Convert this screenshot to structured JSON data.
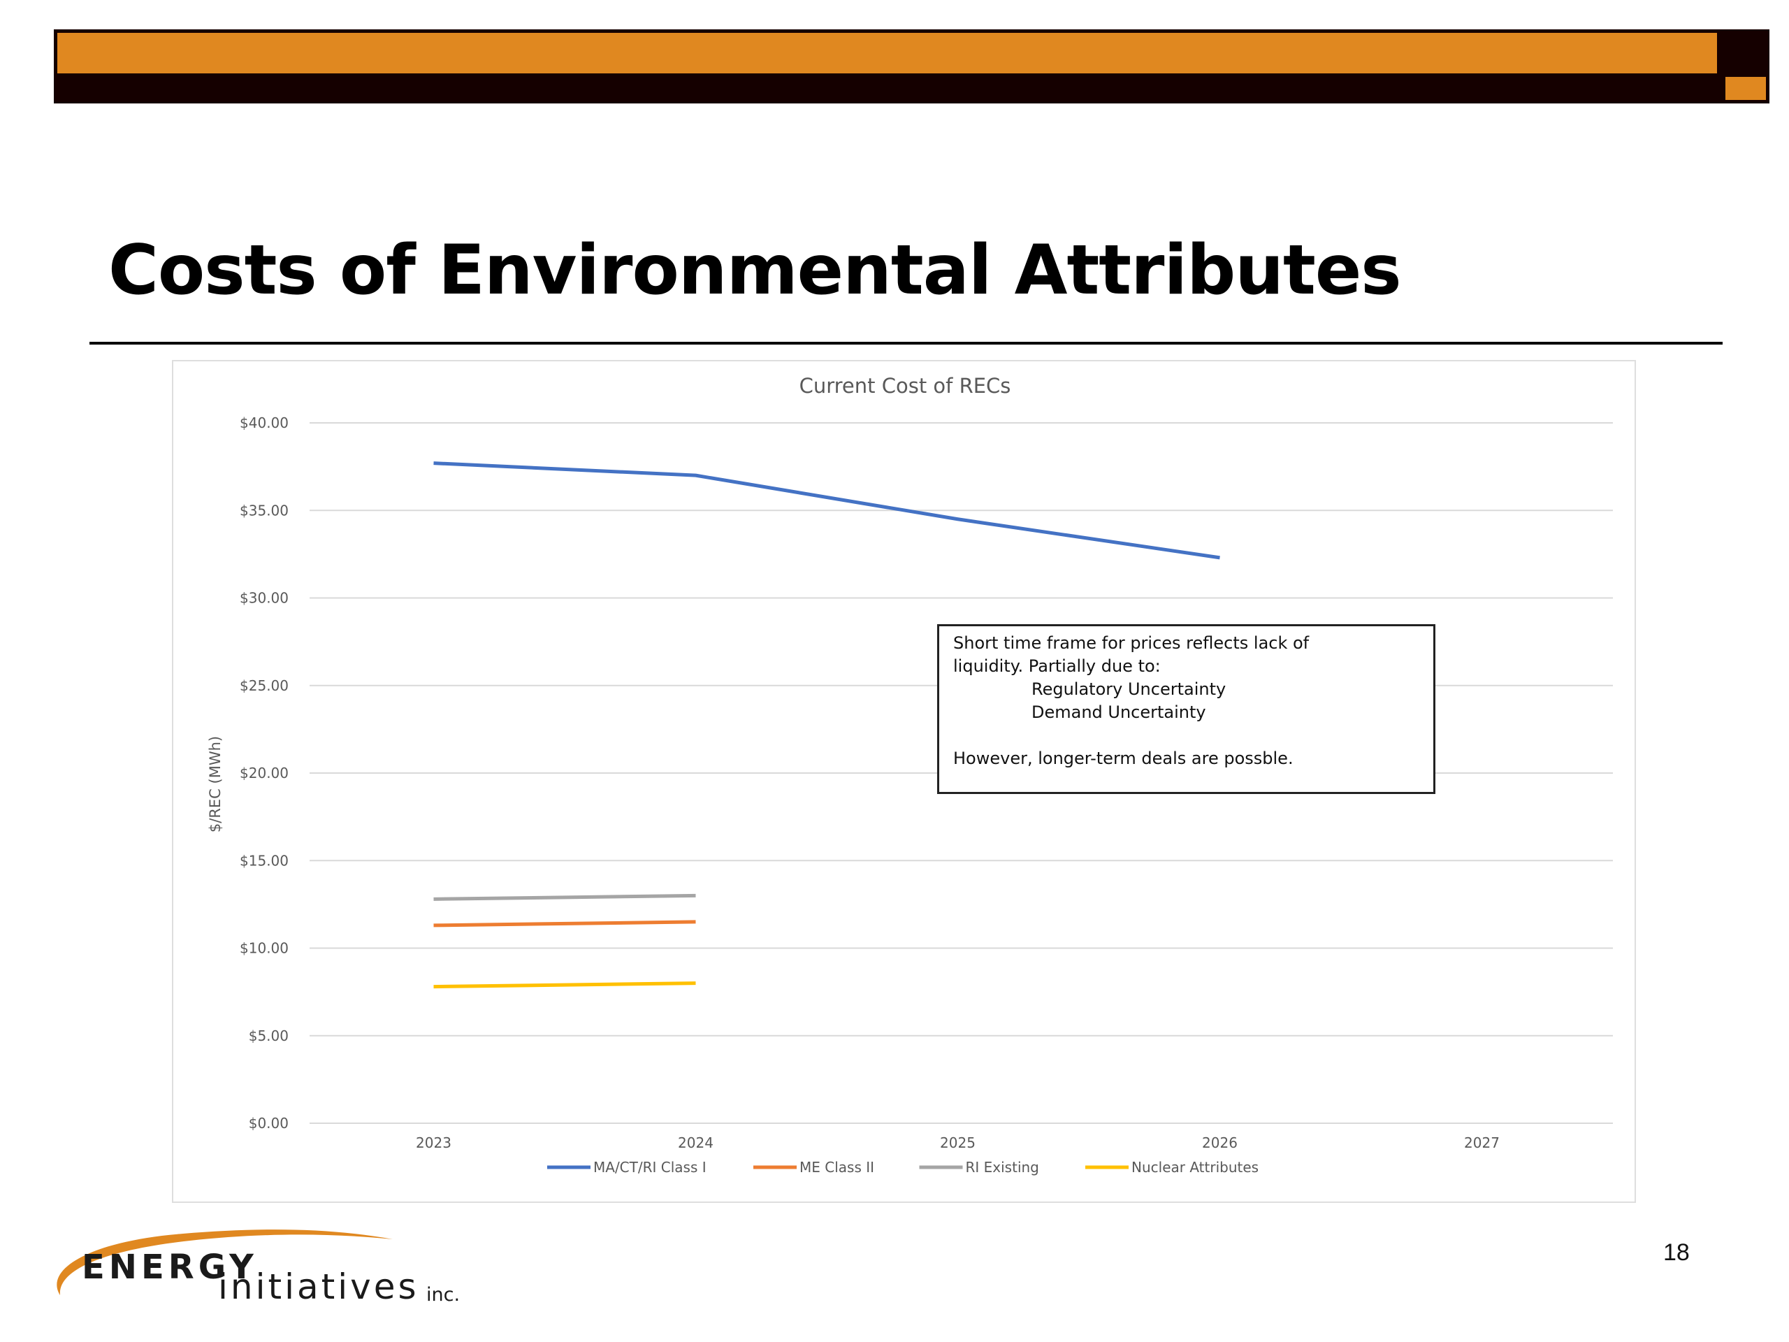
{
  "slide": {
    "title": "Costs of Environmental Attributes",
    "page_number": "18"
  },
  "colors": {
    "accent_orange": "#e08820",
    "bar_dark": "#150000"
  },
  "note": {
    "line1": "Short time frame for prices reflects lack of",
    "line2": "liquidity.  Partially due to:",
    "line3": "Regulatory Uncertainty",
    "line4": "Demand Uncertainty",
    "line5": "However, longer-term deals are possble."
  },
  "logo": {
    "word1": "ENERGY",
    "word2": "initiatives",
    "word3": "inc."
  },
  "chart_data": {
    "type": "line",
    "title": "Current Cost of RECs",
    "ylabel": "$/REC (MWh)",
    "xlabel": "",
    "categories": [
      "2023",
      "2024",
      "2025",
      "2026",
      "2027"
    ],
    "ylim": [
      0,
      40
    ],
    "yticks": [
      0,
      5,
      10,
      15,
      20,
      25,
      30,
      35,
      40
    ],
    "ytick_labels": [
      "$0.00",
      "$5.00",
      "$10.00",
      "$15.00",
      "$20.00",
      "$25.00",
      "$30.00",
      "$35.00",
      "$40.00"
    ],
    "grid": true,
    "legend_position": "bottom",
    "series": [
      {
        "name": "MA/CT/RI Class I",
        "color": "#4472c4",
        "values": [
          37.7,
          37.0,
          34.5,
          32.3,
          null
        ]
      },
      {
        "name": "ME Class II",
        "color": "#ed7d31",
        "values": [
          11.3,
          11.5,
          null,
          null,
          null
        ]
      },
      {
        "name": "RI Existing",
        "color": "#a5a5a5",
        "values": [
          12.8,
          13.0,
          null,
          null,
          null
        ]
      },
      {
        "name": "Nuclear Attributes",
        "color": "#ffc000",
        "values": [
          7.8,
          8.0,
          null,
          null,
          null
        ]
      }
    ]
  }
}
